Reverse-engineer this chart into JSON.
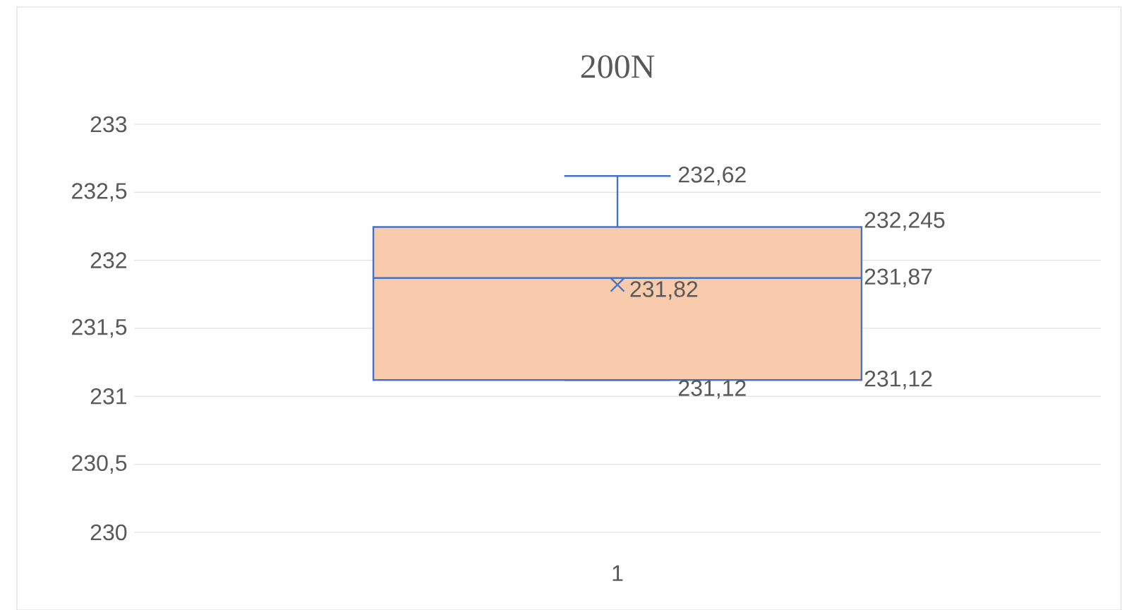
{
  "chart_data": {
    "type": "box",
    "title": "200N",
    "categories": [
      "1"
    ],
    "boxes": [
      {
        "low": 231.12,
        "q1": 231.12,
        "median": 231.87,
        "q3": 232.245,
        "high": 232.62,
        "mean": 231.82
      }
    ],
    "color": "#f8cbad",
    "annotations": [
      {
        "text": "231,12",
        "x": "1",
        "y": 231.12
      },
      "231,12",
      "231,87",
      "232,245",
      {
        "text": "232,62",
        "x": "1",
        "y": 232.62
      },
      {
        "text": "231,82",
        "x": "1",
        "y": 231.82
      }
    ],
    "ylim": [
      230,
      233
    ],
    "yticks": [
      {
        "value": 230,
        "label": "230"
      },
      {
        "value": 230.5,
        "label": "230,5"
      },
      {
        "value": 231,
        "label": "231"
      },
      {
        "value": 231.5,
        "label": "231,5"
      },
      {
        "value": 232,
        "label": "232"
      },
      {
        "value": 232.5,
        "label": "232,5"
      },
      {
        "value": 233,
        "label": "233"
      }
    ],
    "grid": "y"
  }
}
